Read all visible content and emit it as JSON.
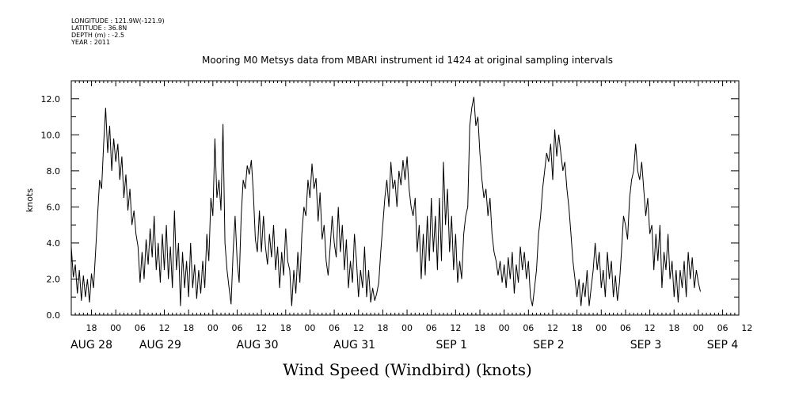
{
  "meta": {
    "longitude": "LONGITUDE : 121.9W(-121.9)",
    "latitude": "LATITUDE : 36.8N",
    "depth": "DEPTH (m) : -2.5",
    "year": "YEAR : 2011"
  },
  "chart_data": {
    "type": "line",
    "title": "Mooring M0 Metsys data from MBARI instrument id 1424 at original sampling intervals",
    "bottom_title": "Wind Speed (Windbird) (knots)",
    "ylabel": "knots",
    "ylim": [
      0,
      13.0
    ],
    "yticks": [
      "0.0",
      "2.0",
      "4.0",
      "6.0",
      "8.0",
      "10.0",
      "12.0"
    ],
    "x_hour_ticks": [
      "18",
      "00",
      "06",
      "12",
      "18",
      "00",
      "06",
      "12",
      "18",
      "00",
      "06",
      "12",
      "18",
      "00",
      "06",
      "12",
      "18",
      "00",
      "06",
      "12",
      "18",
      "00",
      "06",
      "12",
      "18",
      "00",
      "06",
      "12"
    ],
    "date_labels": [
      "AUG 28",
      "AUG 29",
      "AUG 30",
      "AUG 31",
      "SEP  1",
      "SEP  2",
      "SEP  3",
      "SEP  4"
    ],
    "x_range_hours": [
      13,
      178
    ],
    "grid": false,
    "series": [
      {
        "values": [
          [
            13,
            3.8
          ],
          [
            13.5,
            2.1
          ],
          [
            14,
            2.8
          ],
          [
            14.5,
            1.2
          ],
          [
            15,
            2.5
          ],
          [
            15.5,
            0.8
          ],
          [
            16,
            2.2
          ],
          [
            16.5,
            1.0
          ],
          [
            17,
            2.0
          ],
          [
            17.5,
            0.7
          ],
          [
            18,
            2.3
          ],
          [
            18.5,
            1.5
          ],
          [
            19,
            3.5
          ],
          [
            19.5,
            5.5
          ],
          [
            20,
            7.5
          ],
          [
            20.5,
            7.0
          ],
          [
            21,
            9.5
          ],
          [
            21.5,
            11.5
          ],
          [
            22,
            9.0
          ],
          [
            22.5,
            10.5
          ],
          [
            23,
            8.0
          ],
          [
            23.5,
            9.8
          ],
          [
            24,
            8.5
          ],
          [
            24.5,
            9.5
          ],
          [
            25,
            7.5
          ],
          [
            25.5,
            8.8
          ],
          [
            26,
            6.5
          ],
          [
            26.5,
            7.8
          ],
          [
            27,
            5.8
          ],
          [
            27.5,
            7.0
          ],
          [
            28,
            5.0
          ],
          [
            28.5,
            5.8
          ],
          [
            29,
            4.5
          ],
          [
            29.5,
            3.8
          ],
          [
            30,
            1.8
          ],
          [
            30.5,
            3.5
          ],
          [
            31,
            2.0
          ],
          [
            31.5,
            4.2
          ],
          [
            32,
            2.8
          ],
          [
            32.5,
            4.8
          ],
          [
            33,
            3.2
          ],
          [
            33.5,
            5.5
          ],
          [
            34,
            2.5
          ],
          [
            34.5,
            4.0
          ],
          [
            35,
            1.8
          ],
          [
            35.5,
            4.5
          ],
          [
            36,
            2.5
          ],
          [
            36.5,
            5.0
          ],
          [
            37,
            2.0
          ],
          [
            37.5,
            3.8
          ],
          [
            38,
            1.5
          ],
          [
            38.5,
            5.8
          ],
          [
            39,
            2.5
          ],
          [
            39.5,
            4.0
          ],
          [
            40,
            0.5
          ],
          [
            40.5,
            3.5
          ],
          [
            41,
            1.5
          ],
          [
            41.5,
            3.0
          ],
          [
            42,
            1.0
          ],
          [
            42.5,
            4.0
          ],
          [
            43,
            1.5
          ],
          [
            43.5,
            2.8
          ],
          [
            44,
            0.9
          ],
          [
            44.5,
            2.5
          ],
          [
            45,
            1.2
          ],
          [
            45.5,
            3.0
          ],
          [
            46,
            1.5
          ],
          [
            46.5,
            4.5
          ],
          [
            47,
            3.0
          ],
          [
            47.5,
            6.5
          ],
          [
            48,
            5.5
          ],
          [
            48.5,
            9.8
          ],
          [
            49,
            6.5
          ],
          [
            49.5,
            7.5
          ],
          [
            50,
            5.8
          ],
          [
            50.5,
            10.6
          ],
          [
            51,
            4.0
          ],
          [
            51.5,
            2.5
          ],
          [
            52,
            1.5
          ],
          [
            52.5,
            0.6
          ],
          [
            53,
            3.5
          ],
          [
            53.5,
            5.5
          ],
          [
            54,
            3.0
          ],
          [
            54.5,
            1.8
          ],
          [
            55,
            5.5
          ],
          [
            55.5,
            7.5
          ],
          [
            56,
            7.0
          ],
          [
            56.5,
            8.3
          ],
          [
            57,
            7.8
          ],
          [
            57.5,
            8.6
          ],
          [
            58,
            6.8
          ],
          [
            58.5,
            4.2
          ],
          [
            59,
            3.5
          ],
          [
            59.5,
            5.8
          ],
          [
            60,
            3.5
          ],
          [
            60.5,
            5.5
          ],
          [
            61,
            3.8
          ],
          [
            61.5,
            2.8
          ],
          [
            62,
            4.5
          ],
          [
            62.5,
            3.2
          ],
          [
            63,
            5.0
          ],
          [
            63.5,
            2.5
          ],
          [
            64,
            3.8
          ],
          [
            64.5,
            1.5
          ],
          [
            65,
            3.5
          ],
          [
            65.5,
            2.2
          ],
          [
            66,
            4.8
          ],
          [
            66.5,
            3.0
          ],
          [
            67,
            2.5
          ],
          [
            67.5,
            0.5
          ],
          [
            68,
            2.5
          ],
          [
            68.5,
            1.2
          ],
          [
            69,
            3.5
          ],
          [
            69.5,
            1.8
          ],
          [
            70,
            4.5
          ],
          [
            70.5,
            6.0
          ],
          [
            71,
            5.5
          ],
          [
            71.5,
            7.5
          ],
          [
            72,
            6.5
          ],
          [
            72.5,
            8.4
          ],
          [
            73,
            7.0
          ],
          [
            73.5,
            7.6
          ],
          [
            74,
            5.2
          ],
          [
            74.5,
            6.8
          ],
          [
            75,
            4.2
          ],
          [
            75.5,
            5.0
          ],
          [
            76,
            3.0
          ],
          [
            76.5,
            2.2
          ],
          [
            77,
            3.8
          ],
          [
            77.5,
            5.5
          ],
          [
            78,
            4.0
          ],
          [
            78.5,
            3.2
          ],
          [
            79,
            6.0
          ],
          [
            79.5,
            3.5
          ],
          [
            80,
            5.0
          ],
          [
            80.5,
            2.5
          ],
          [
            81,
            4.2
          ],
          [
            81.5,
            1.5
          ],
          [
            82,
            3.0
          ],
          [
            82.5,
            1.8
          ],
          [
            83,
            4.5
          ],
          [
            83.5,
            3.0
          ],
          [
            84,
            1.0
          ],
          [
            84.5,
            2.5
          ],
          [
            85,
            1.5
          ],
          [
            85.5,
            3.8
          ],
          [
            86,
            1.0
          ],
          [
            86.5,
            2.5
          ],
          [
            87,
            0.7
          ],
          [
            87.5,
            1.5
          ],
          [
            88,
            0.8
          ],
          [
            88.5,
            1.2
          ],
          [
            89,
            1.8
          ],
          [
            89.5,
            3.5
          ],
          [
            90,
            5.0
          ],
          [
            90.5,
            6.5
          ],
          [
            91,
            7.5
          ],
          [
            91.5,
            6.0
          ],
          [
            92,
            8.5
          ],
          [
            92.5,
            7.0
          ],
          [
            93,
            7.5
          ],
          [
            93.5,
            6.0
          ],
          [
            94,
            8.0
          ],
          [
            94.5,
            7.2
          ],
          [
            95,
            8.6
          ],
          [
            95.5,
            7.5
          ],
          [
            96,
            8.8
          ],
          [
            96.5,
            7.0
          ],
          [
            97,
            6.0
          ],
          [
            97.5,
            5.5
          ],
          [
            98,
            6.5
          ],
          [
            98.5,
            3.5
          ],
          [
            99,
            5.0
          ],
          [
            99.5,
            2.0
          ],
          [
            100,
            4.5
          ],
          [
            100.5,
            2.2
          ],
          [
            101,
            5.5
          ],
          [
            101.5,
            3.0
          ],
          [
            102,
            6.5
          ],
          [
            102.5,
            3.5
          ],
          [
            103,
            5.5
          ],
          [
            103.5,
            2.5
          ],
          [
            104,
            6.5
          ],
          [
            104.5,
            3.0
          ],
          [
            105,
            8.5
          ],
          [
            105.5,
            5.0
          ],
          [
            106,
            7.0
          ],
          [
            106.5,
            3.5
          ],
          [
            107,
            5.5
          ],
          [
            107.5,
            2.5
          ],
          [
            108,
            4.5
          ],
          [
            108.5,
            1.8
          ],
          [
            109,
            3.0
          ],
          [
            109.5,
            2.0
          ],
          [
            110,
            4.5
          ],
          [
            110.5,
            5.5
          ],
          [
            111,
            6.0
          ],
          [
            111.5,
            10.5
          ],
          [
            112,
            11.5
          ],
          [
            112.5,
            12.1
          ],
          [
            113,
            10.5
          ],
          [
            113.5,
            11.0
          ],
          [
            114,
            9.0
          ],
          [
            114.5,
            7.5
          ],
          [
            115,
            6.5
          ],
          [
            115.5,
            7.0
          ],
          [
            116,
            5.5
          ],
          [
            116.5,
            6.5
          ],
          [
            117,
            4.5
          ],
          [
            117.5,
            3.5
          ],
          [
            118,
            3.0
          ],
          [
            118.5,
            2.2
          ],
          [
            119,
            3.0
          ],
          [
            119.5,
            1.8
          ],
          [
            120,
            2.8
          ],
          [
            120.5,
            1.5
          ],
          [
            121,
            3.2
          ],
          [
            121.5,
            2.0
          ],
          [
            122,
            3.5
          ],
          [
            122.5,
            1.2
          ],
          [
            123,
            2.8
          ],
          [
            123.5,
            1.8
          ],
          [
            124,
            3.8
          ],
          [
            124.5,
            2.5
          ],
          [
            125,
            3.5
          ],
          [
            125.5,
            2.0
          ],
          [
            126,
            3.0
          ],
          [
            126.5,
            1.0
          ],
          [
            127,
            0.5
          ],
          [
            127.5,
            1.5
          ],
          [
            128,
            2.5
          ],
          [
            128.5,
            4.5
          ],
          [
            129,
            5.5
          ],
          [
            129.5,
            7.0
          ],
          [
            130,
            8.0
          ],
          [
            130.5,
            9.0
          ],
          [
            131,
            8.5
          ],
          [
            131.5,
            9.5
          ],
          [
            132,
            7.5
          ],
          [
            132.5,
            10.3
          ],
          [
            133,
            8.8
          ],
          [
            133.5,
            10.0
          ],
          [
            134,
            9.0
          ],
          [
            134.5,
            8.0
          ],
          [
            135,
            8.5
          ],
          [
            135.5,
            7.0
          ],
          [
            136,
            6.0
          ],
          [
            136.5,
            4.5
          ],
          [
            137,
            3.0
          ],
          [
            137.5,
            2.0
          ],
          [
            138,
            1.0
          ],
          [
            138.5,
            2.0
          ],
          [
            139,
            0.5
          ],
          [
            139.5,
            1.8
          ],
          [
            140,
            1.0
          ],
          [
            140.5,
            2.5
          ],
          [
            141,
            0.5
          ],
          [
            141.5,
            1.5
          ],
          [
            142,
            2.5
          ],
          [
            142.5,
            4.0
          ],
          [
            143,
            2.5
          ],
          [
            143.5,
            3.5
          ],
          [
            144,
            1.5
          ],
          [
            144.5,
            2.5
          ],
          [
            145,
            1.0
          ],
          [
            145.5,
            3.5
          ],
          [
            146,
            2.0
          ],
          [
            146.5,
            3.0
          ],
          [
            147,
            1.0
          ],
          [
            147.5,
            2.2
          ],
          [
            148,
            0.8
          ],
          [
            148.5,
            1.8
          ],
          [
            149,
            3.5
          ],
          [
            149.5,
            5.5
          ],
          [
            150,
            5.0
          ],
          [
            150.5,
            4.2
          ],
          [
            151,
            6.5
          ],
          [
            151.5,
            7.5
          ],
          [
            152,
            8.0
          ],
          [
            152.5,
            9.5
          ],
          [
            153,
            8.0
          ],
          [
            153.5,
            7.5
          ],
          [
            154,
            8.5
          ],
          [
            154.5,
            7.0
          ],
          [
            155,
            5.5
          ],
          [
            155.5,
            6.5
          ],
          [
            156,
            4.5
          ],
          [
            156.5,
            5.0
          ],
          [
            157,
            2.5
          ],
          [
            157.5,
            4.5
          ],
          [
            158,
            3.0
          ],
          [
            158.5,
            5.0
          ],
          [
            159,
            1.5
          ],
          [
            159.5,
            3.5
          ],
          [
            160,
            2.5
          ],
          [
            160.5,
            4.5
          ],
          [
            161,
            2.0
          ],
          [
            161.5,
            3.0
          ],
          [
            162,
            1.0
          ],
          [
            162.5,
            2.5
          ],
          [
            163,
            0.7
          ],
          [
            163.5,
            2.5
          ],
          [
            164,
            1.5
          ],
          [
            164.5,
            3.0
          ],
          [
            165,
            1.0
          ],
          [
            165.5,
            3.5
          ],
          [
            166,
            2.0
          ],
          [
            166.5,
            3.2
          ],
          [
            167,
            1.5
          ],
          [
            167.5,
            2.5
          ],
          [
            168,
            1.8
          ],
          [
            168.5,
            1.3
          ]
        ]
      }
    ]
  }
}
